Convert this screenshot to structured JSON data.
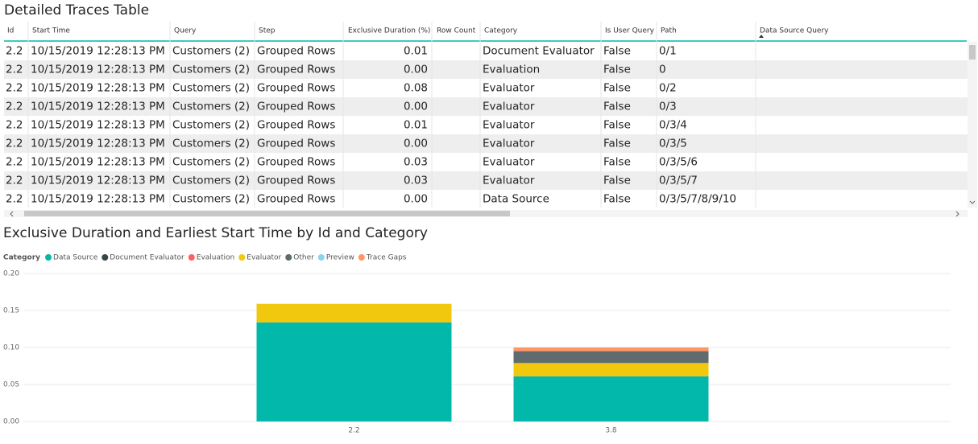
{
  "table": {
    "title": "Detailed Traces Table",
    "columns": [
      "Id",
      "Start Time",
      "Query",
      "Step",
      "Exclusive Duration (%)",
      "Row Count",
      "Category",
      "Is User Query",
      "Path",
      "Data Source Query"
    ],
    "rows": [
      {
        "id": "2.2",
        "start_time": "10/15/2019 12:28:13 PM",
        "query": "Customers (2)",
        "step": "Grouped Rows",
        "exclusive_duration": "0.01",
        "category": "Document Evaluator",
        "is_user_query": "False",
        "path": "0/1"
      },
      {
        "id": "2.2",
        "start_time": "10/15/2019 12:28:13 PM",
        "query": "Customers (2)",
        "step": "Grouped Rows",
        "exclusive_duration": "0.00",
        "category": "Evaluation",
        "is_user_query": "False",
        "path": "0"
      },
      {
        "id": "2.2",
        "start_time": "10/15/2019 12:28:13 PM",
        "query": "Customers (2)",
        "step": "Grouped Rows",
        "exclusive_duration": "0.08",
        "category": "Evaluator",
        "is_user_query": "False",
        "path": "0/2"
      },
      {
        "id": "2.2",
        "start_time": "10/15/2019 12:28:13 PM",
        "query": "Customers (2)",
        "step": "Grouped Rows",
        "exclusive_duration": "0.00",
        "category": "Evaluator",
        "is_user_query": "False",
        "path": "0/3"
      },
      {
        "id": "2.2",
        "start_time": "10/15/2019 12:28:13 PM",
        "query": "Customers (2)",
        "step": "Grouped Rows",
        "exclusive_duration": "0.01",
        "category": "Evaluator",
        "is_user_query": "False",
        "path": "0/3/4"
      },
      {
        "id": "2.2",
        "start_time": "10/15/2019 12:28:13 PM",
        "query": "Customers (2)",
        "step": "Grouped Rows",
        "exclusive_duration": "0.00",
        "category": "Evaluator",
        "is_user_query": "False",
        "path": "0/3/5"
      },
      {
        "id": "2.2",
        "start_time": "10/15/2019 12:28:13 PM",
        "query": "Customers (2)",
        "step": "Grouped Rows",
        "exclusive_duration": "0.03",
        "category": "Evaluator",
        "is_user_query": "False",
        "path": "0/3/5/6"
      },
      {
        "id": "2.2",
        "start_time": "10/15/2019 12:28:13 PM",
        "query": "Customers (2)",
        "step": "Grouped Rows",
        "exclusive_duration": "0.03",
        "category": "Evaluator",
        "is_user_query": "False",
        "path": "0/3/5/7"
      },
      {
        "id": "2.2",
        "start_time": "10/15/2019 12:28:13 PM",
        "query": "Customers (2)",
        "step": "Grouped Rows",
        "exclusive_duration": "0.00",
        "category": "Data Source",
        "is_user_query": "False",
        "path": "0/3/5/7/8/9/10"
      }
    ]
  },
  "chart_data": {
    "type": "stacked_bar",
    "title": "Exclusive Duration and Earliest Start Time by Id and Category",
    "legend_title": "Category",
    "categories": [
      "2.2",
      "3.8"
    ],
    "series": [
      {
        "name": "Data Source",
        "color": "#01b8aa",
        "values": [
          0.134,
          0.061
        ]
      },
      {
        "name": "Document Evaluator",
        "color": "#374649",
        "values": [
          0,
          0
        ]
      },
      {
        "name": "Evaluation",
        "color": "#fd625e",
        "values": [
          0,
          0
        ]
      },
      {
        "name": "Evaluator",
        "color": "#f2c80f",
        "values": [
          0.025,
          0.018
        ]
      },
      {
        "name": "Other",
        "color": "#5f6b6d",
        "values": [
          0,
          0.016
        ]
      },
      {
        "name": "Preview",
        "color": "#8ad4eb",
        "values": [
          0,
          0
        ]
      },
      {
        "name": "Trace Gaps",
        "color": "#fe9666",
        "values": [
          0,
          0.005
        ]
      }
    ],
    "ylim": [
      0,
      0.2
    ],
    "yticks": [
      {
        "value": 0,
        "label": "0.00"
      },
      0.05,
      {
        "value": 0.1,
        "label": "0.10"
      },
      0.15,
      {
        "value": 0.2,
        "label": "0.20"
      }
    ],
    "grid": true
  }
}
